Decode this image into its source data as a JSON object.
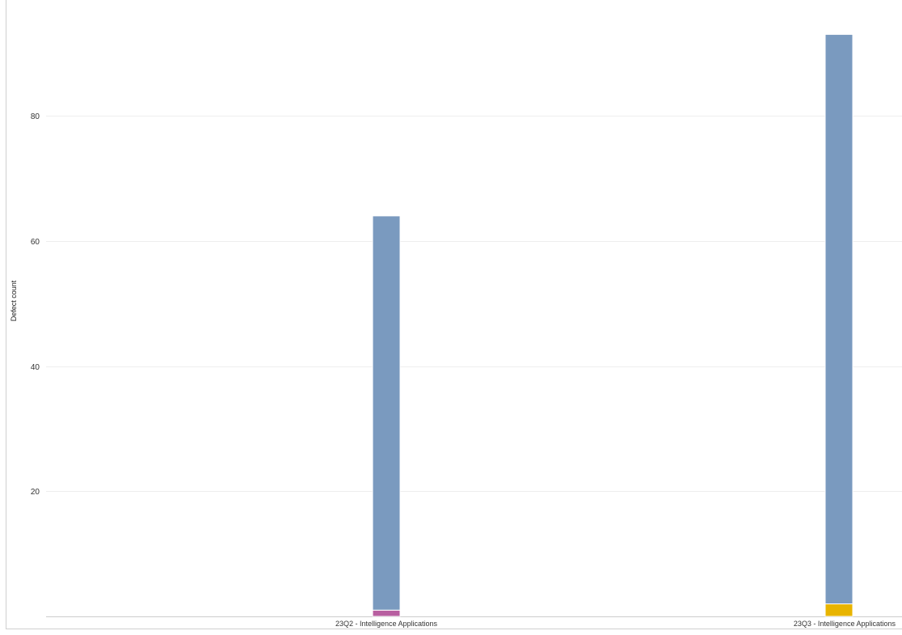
{
  "chart_data": {
    "type": "bar",
    "stacked": true,
    "ylabel": "Defect count",
    "xlabel": "",
    "ylim": [
      0,
      98.5
    ],
    "yticks": [
      20,
      40,
      60,
      80
    ],
    "grid": true,
    "categories": [
      "23Q2 - Intelligence Applications",
      "23Q3 - Intelligence Applications"
    ],
    "series": [
      {
        "color": "#b85fa0",
        "values": [
          1,
          0
        ]
      },
      {
        "color": "#e8b400",
        "values": [
          0,
          2
        ]
      },
      {
        "color": "#7a9abf",
        "values": [
          63,
          91
        ]
      }
    ]
  }
}
